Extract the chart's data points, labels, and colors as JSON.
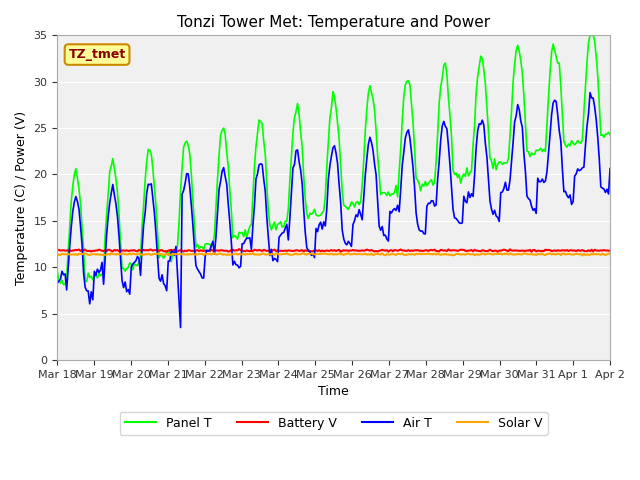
{
  "title": "Tonzi Tower Met: Temperature and Power",
  "xlabel": "Time",
  "ylabel": "Temperature (C) / Power (V)",
  "ylim": [
    0,
    35
  ],
  "xlim_start": 0,
  "xlim_end": 15,
  "background_color": "#e8e8e8",
  "plot_bg_color": "#f0f0f0",
  "legend_labels": [
    "Panel T",
    "Battery V",
    "Air T",
    "Solar V"
  ],
  "legend_colors": [
    "#00ff00",
    "#ff0000",
    "#0000ff",
    "#ffa500"
  ],
  "annotation_text": "TZ_tmet",
  "annotation_bg": "#ffff99",
  "annotation_border": "#cc8800",
  "annotation_text_color": "#880000",
  "x_tick_labels": [
    "Mar 18",
    "Mar 19",
    "Mar 20",
    "Mar 21",
    "Mar 22",
    "Mar 23",
    "Mar 24",
    "Mar 25",
    "Mar 26",
    "Mar 27",
    "Mar 28",
    "Mar 29",
    "Mar 30",
    "Mar 31",
    "Apr 1",
    "Apr 2"
  ],
  "x_tick_positions": [
    0,
    1,
    2,
    3,
    4,
    5,
    6,
    7,
    8,
    9,
    10,
    11,
    12,
    13,
    14,
    15
  ]
}
